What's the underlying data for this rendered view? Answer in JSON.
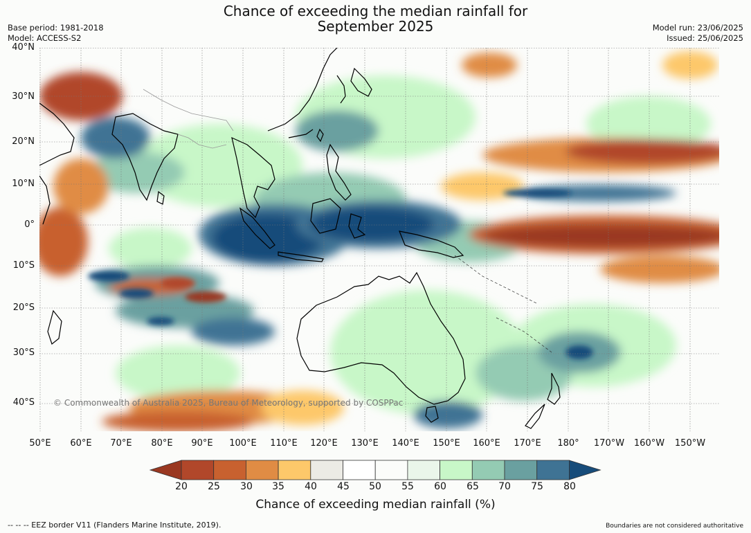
{
  "title_line1": "Chance of exceeding the median rainfall for",
  "title_line2": "September 2025",
  "meta_left": [
    "Base period: 1981-2018",
    "Model: ACCESS-S2"
  ],
  "meta_right": [
    "Model run: 23/06/2025",
    "Issued: 25/06/2025"
  ],
  "lat_labels": [
    "40°N",
    "30°N",
    "20°N",
    "10°N",
    "0°",
    "10°S",
    "20°S",
    "30°S",
    "40°S"
  ],
  "lon_labels": [
    "50°E",
    "60°E",
    "70°E",
    "80°E",
    "90°E",
    "100°E",
    "110°E",
    "120°E",
    "130°E",
    "140°E",
    "150°E",
    "160°E",
    "170°E",
    "180°",
    "170°W",
    "160°W",
    "150°W"
  ],
  "copyright": "© Commonwealth of Australia 2025, Bureau of Meteorology, supported by COSPPac",
  "colorbar": {
    "label": "Chance of exceeding median rainfall (%)",
    "ticks": [
      "20",
      "25",
      "30",
      "35",
      "40",
      "45",
      "50",
      "55",
      "60",
      "65",
      "70",
      "75",
      "80"
    ],
    "colors": [
      "#9a3821",
      "#b1472a",
      "#c8612f",
      "#e08c44",
      "#fdc86a",
      "#ecebe5",
      "#ffffff",
      "#fbfcfa",
      "#eaf6ea",
      "#c8f7c8",
      "#94cbb3",
      "#6aa0a0",
      "#3f7394",
      "#174c7a"
    ]
  },
  "eez_note": "--  --  -- EEZ border V11 (Flanders Marine Institute, 2019).",
  "disclaimer": "Boundaries are not considered authoritative"
}
